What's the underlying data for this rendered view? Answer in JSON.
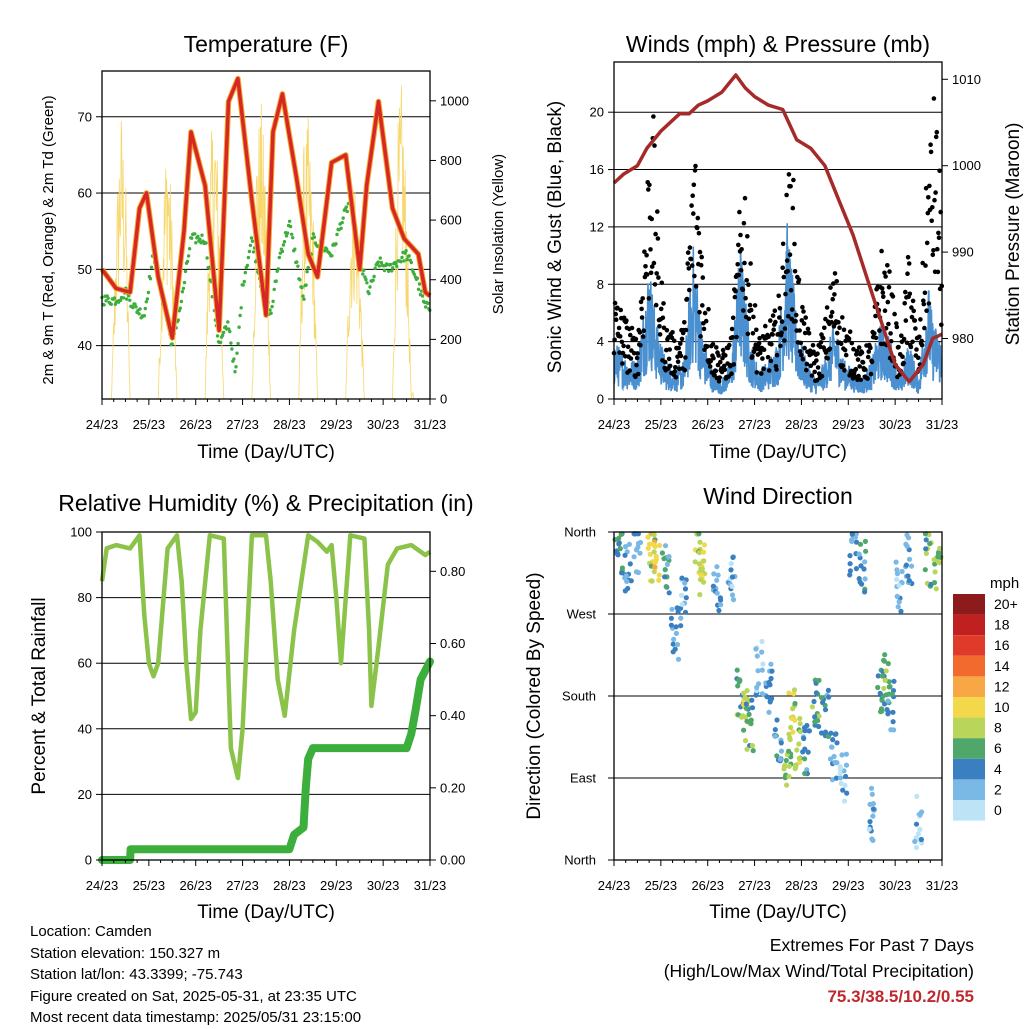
{
  "x_ticks": [
    "24/23",
    "25/23",
    "26/23",
    "27/23",
    "28/23",
    "29/23",
    "30/23",
    "31/23"
  ],
  "colors": {
    "temp": "#d62728",
    "temp_glow": "#f5a623",
    "dewpoint": "#3cae3c",
    "solar": "#f7d76a",
    "wind": "#4a90d0",
    "gust": "#000000",
    "pressure": "#a52a2a",
    "rh": "#8bc34a",
    "rain": "#3cae3c"
  },
  "panels": {
    "temperature": {
      "title": "Temperature (F)",
      "xlabel": "Time (Day/UTC)",
      "ylabel_left": "2m & 9m T (Red, Orange) & 2m Td (Green)",
      "ylabel_right": "Solar Insolation (Yellow)",
      "yticks_left": [
        "40",
        "50",
        "60",
        "70"
      ],
      "yticks_right": [
        "0",
        "200",
        "400",
        "600",
        "800",
        "1000"
      ]
    },
    "winds": {
      "title": "Winds (mph) & Pressure (mb)",
      "xlabel": "Time (Day/UTC)",
      "ylabel_left": "Sonic Wind & Gust (Blue, Black)",
      "ylabel_right": "Station Pressure (Maroon)",
      "yticks_left": [
        "0",
        "4",
        "8",
        "12",
        "16",
        "20"
      ],
      "yticks_right": [
        "980",
        "990",
        "1000",
        "1010"
      ]
    },
    "humidity": {
      "title": "Relative Humidity (%) & Precipitation (in)",
      "xlabel": "Time (Day/UTC)",
      "ylabel_left": "Percent & Total Rainfall",
      "yticks_left": [
        "0",
        "20",
        "40",
        "60",
        "80",
        "100"
      ],
      "yticks_right": [
        "0.00",
        "0.20",
        "0.40",
        "0.60",
        "0.80"
      ]
    },
    "direction": {
      "title": "Wind Direction",
      "xlabel": "Time (Day/UTC)",
      "ylabel_left": "Direction (Colored By Speed)",
      "yticks_left": [
        "North",
        "East",
        "South",
        "West",
        "North"
      ],
      "legend_title": "mph",
      "legend_labels": [
        "20+",
        "18",
        "16",
        "14",
        "12",
        "10",
        "8",
        "6",
        "4",
        "2",
        "0"
      ],
      "legend_colors": [
        "#8e1b1b",
        "#c0201f",
        "#e03a2a",
        "#f26a2e",
        "#f7a743",
        "#f2d84a",
        "#b9d65a",
        "#4fa86a",
        "#3a80c0",
        "#7ab8e6",
        "#bde3f7"
      ]
    }
  },
  "chart_data": [
    {
      "type": "line",
      "title": "Temperature (F)",
      "xlabel": "Time (Day/UTC)",
      "ylabel": "2m & 9m T (Red, Orange) & 2m Td (Green)",
      "y2label": "Solar Insolation (Yellow)",
      "xlim": [
        24,
        31
      ],
      "ylim": [
        33,
        76
      ],
      "y2lim": [
        0,
        1100
      ],
      "series": [
        {
          "name": "2m & 9m T (Red, Orange)",
          "x": [
            24.0,
            24.3,
            24.6,
            24.8,
            24.95,
            25.2,
            25.5,
            25.75,
            25.9,
            26.2,
            26.5,
            26.7,
            26.9,
            27.2,
            27.5,
            27.65,
            27.85,
            28.15,
            28.4,
            28.6,
            28.9,
            29.2,
            29.5,
            29.65,
            29.9,
            30.2,
            30.45,
            30.6,
            30.75,
            30.9,
            31.0
          ],
          "values": [
            50,
            47.5,
            47,
            58,
            60,
            49,
            41,
            55,
            68,
            61,
            42,
            72,
            75,
            59,
            44,
            68,
            73,
            62,
            52,
            49,
            64,
            65,
            50,
            61,
            72,
            58,
            54,
            53,
            52,
            47,
            46.5
          ]
        },
        {
          "name": "2m Td (Green)",
          "x": [
            24.0,
            24.3,
            24.5,
            24.7,
            24.9,
            25.1,
            25.3,
            25.5,
            25.7,
            25.9,
            26.2,
            26.5,
            26.7,
            26.85,
            27.0,
            27.2,
            27.4,
            27.6,
            27.8,
            28.0,
            28.3,
            28.5,
            28.7,
            28.9,
            29.1,
            29.3,
            29.5,
            29.7,
            29.9,
            30.1,
            30.3,
            30.5,
            30.7,
            30.9,
            31.0
          ],
          "values": [
            46,
            46,
            47,
            45,
            44,
            52,
            46,
            40,
            46,
            54,
            54,
            40,
            43,
            36,
            48,
            54,
            48,
            44,
            52,
            56,
            46,
            54,
            53,
            52,
            56,
            59,
            51,
            47,
            51,
            50,
            51,
            52,
            49,
            45,
            45
          ]
        },
        {
          "name": "Solar Insolation (Yellow)",
          "x": [
            24.2,
            24.3,
            24.4,
            24.5,
            24.6,
            25.2,
            25.3,
            25.4,
            25.5,
            25.6,
            26.2,
            26.3,
            26.4,
            26.5,
            26.6,
            27.2,
            27.3,
            27.4,
            27.5,
            27.6,
            28.2,
            28.3,
            28.4,
            28.5,
            28.6,
            29.2,
            29.3,
            29.4,
            29.5,
            29.6,
            30.2,
            30.3,
            30.4,
            30.5,
            30.6,
            30.9
          ],
          "values": [
            0,
            600,
            1000,
            800,
            0,
            0,
            700,
            950,
            600,
            0,
            0,
            800,
            1050,
            700,
            0,
            0,
            900,
            1000,
            750,
            0,
            0,
            850,
            950,
            700,
            0,
            0,
            650,
            800,
            500,
            0,
            0,
            900,
            1080,
            700,
            0,
            300
          ]
        }
      ]
    },
    {
      "type": "line",
      "title": "Winds (mph) & Pressure (mb)",
      "xlabel": "Time (Day/UTC)",
      "ylabel": "Sonic Wind & Gust (Blue, Black)",
      "y2label": "Station Pressure (Maroon)",
      "xlim": [
        24,
        31
      ],
      "ylim": [
        0,
        23.5
      ],
      "y2lim": [
        973,
        1012
      ],
      "series": [
        {
          "name": "Sonic Wind (Blue)",
          "x": [
            24.0,
            24.3,
            24.5,
            24.75,
            24.9,
            25.1,
            25.3,
            25.5,
            25.7,
            25.9,
            26.1,
            26.3,
            26.5,
            26.7,
            26.9,
            27.1,
            27.3,
            27.5,
            27.7,
            27.9,
            28.1,
            28.3,
            28.5,
            28.7,
            28.9,
            29.1,
            29.3,
            29.5,
            29.7,
            29.9,
            30.1,
            30.3,
            30.5,
            30.7,
            30.8,
            31.0
          ],
          "values": [
            3,
            2,
            2,
            7,
            4,
            2,
            1.5,
            2,
            8,
            3,
            1.5,
            1,
            2,
            8,
            3,
            1.5,
            2,
            3,
            9,
            4,
            2,
            1,
            2,
            4,
            2,
            1.5,
            1,
            2,
            4,
            3,
            1,
            3,
            1,
            6,
            4,
            3
          ]
        },
        {
          "name": "Gust (Black)",
          "x": [
            24.0,
            24.3,
            24.5,
            24.7,
            24.8,
            24.95,
            25.1,
            25.3,
            25.5,
            25.7,
            25.8,
            25.9,
            26.1,
            26.3,
            26.5,
            26.7,
            26.8,
            26.9,
            27.1,
            27.3,
            27.5,
            27.7,
            27.8,
            27.9,
            28.1,
            28.3,
            28.5,
            28.7,
            28.9,
            29.1,
            29.3,
            29.5,
            29.7,
            29.9,
            30.1,
            30.3,
            30.5,
            30.7,
            30.85,
            31.0
          ],
          "values": [
            7,
            5,
            4,
            14,
            21,
            10,
            5,
            4,
            5,
            17,
            15,
            9,
            4,
            3,
            4,
            13,
            15,
            9,
            4,
            5,
            6,
            14,
            16,
            9,
            5,
            3,
            5,
            9,
            5,
            4,
            3,
            4,
            10,
            8,
            3,
            10,
            3,
            16,
            20,
            12
          ]
        },
        {
          "name": "Station Pressure (Maroon)",
          "x": [
            24.0,
            24.2,
            24.5,
            24.7,
            25.0,
            25.2,
            25.4,
            25.6,
            25.8,
            26.0,
            26.3,
            26.6,
            26.8,
            27.0,
            27.3,
            27.6,
            27.9,
            28.2,
            28.5,
            28.8,
            29.1,
            29.4,
            29.7,
            30.0,
            30.3,
            30.6,
            30.8,
            31.0
          ],
          "values": [
            998,
            999,
            1000,
            1002,
            1004,
            1005,
            1006,
            1006,
            1007,
            1007.5,
            1008.5,
            1010.5,
            1009,
            1008,
            1007,
            1006.5,
            1003,
            1002,
            1000,
            996,
            992,
            987,
            982,
            977,
            975,
            977,
            980,
            980.5
          ]
        }
      ]
    },
    {
      "type": "line",
      "title": "Relative Humidity (%) & Precipitation (in)",
      "xlabel": "Time (Day/UTC)",
      "ylabel": "Percent & Total Rainfall",
      "xlim": [
        24,
        31
      ],
      "ylim": [
        0,
        100
      ],
      "y2lim": [
        0,
        0.909
      ],
      "series": [
        {
          "name": "Relative Humidity (%)",
          "x": [
            24.0,
            24.1,
            24.3,
            24.6,
            24.8,
            24.9,
            25.0,
            25.1,
            25.2,
            25.4,
            25.6,
            25.7,
            25.8,
            25.9,
            26.0,
            26.1,
            26.3,
            26.6,
            26.7,
            26.75,
            26.9,
            27.0,
            27.2,
            27.5,
            27.6,
            27.75,
            27.9,
            28.1,
            28.4,
            28.6,
            28.8,
            28.9,
            29.0,
            29.1,
            29.3,
            29.6,
            29.7,
            29.75,
            29.9,
            30.1,
            30.3,
            30.6,
            30.9,
            31.0
          ],
          "values": [
            85,
            95,
            96,
            95,
            99,
            75,
            60,
            56,
            60,
            95,
            99,
            85,
            60,
            43,
            45,
            70,
            99,
            98,
            55,
            34,
            25,
            40,
            99,
            99,
            85,
            55,
            44,
            70,
            99,
            97,
            94,
            96,
            80,
            60,
            99,
            98,
            70,
            47,
            65,
            90,
            95,
            96,
            93,
            94
          ]
        },
        {
          "name": "Total Rainfall (in)",
          "x": [
            24.0,
            24.6,
            24.61,
            28.0,
            28.1,
            28.3,
            28.35,
            28.4,
            28.5,
            29.0,
            29.5,
            30.0,
            30.5,
            30.6,
            30.7,
            30.8,
            31.0
          ],
          "values": [
            0.0,
            0.0,
            0.03,
            0.03,
            0.07,
            0.09,
            0.2,
            0.28,
            0.31,
            0.31,
            0.31,
            0.31,
            0.31,
            0.35,
            0.42,
            0.5,
            0.55
          ]
        }
      ]
    },
    {
      "type": "scatter",
      "title": "Wind Direction",
      "xlabel": "Time (Day/UTC)",
      "ylabel": "Direction (Colored By Speed)",
      "xlim": [
        24,
        31
      ],
      "ylim": [
        0,
        360
      ],
      "note": "Point color encodes speed (mph) per legend",
      "series": [
        {
          "name": "Direction",
          "x": [
            24.1,
            24.3,
            24.5,
            24.8,
            24.9,
            25.1,
            25.3,
            25.5,
            25.8,
            25.9,
            26.2,
            26.5,
            26.7,
            26.8,
            26.9,
            27.1,
            27.3,
            27.5,
            27.7,
            27.8,
            27.9,
            28.1,
            28.3,
            28.5,
            28.7,
            28.9,
            29.1,
            29.3,
            29.5,
            29.7,
            29.8,
            29.9,
            30.1,
            30.3,
            30.5,
            30.7,
            30.9
          ],
          "values": [
            330,
            320,
            340,
            330,
            335,
            320,
            250,
            280,
            330,
            320,
            300,
            310,
            180,
            160,
            150,
            210,
            190,
            130,
            110,
            160,
            130,
            120,
            170,
            160,
            110,
            90,
            340,
            320,
            50,
            180,
            200,
            170,
            300,
            330,
            40,
            330,
            320
          ],
          "speeds": [
            4,
            3,
            2,
            8,
            10,
            4,
            3,
            2,
            8,
            9,
            3,
            2,
            6,
            8,
            6,
            2,
            3,
            4,
            7,
            8,
            8,
            4,
            6,
            4,
            3,
            2,
            3,
            4,
            2,
            5,
            7,
            4,
            2,
            3,
            2,
            6,
            7
          ]
        }
      ]
    }
  ],
  "info": {
    "location": "Location: Camden",
    "elevation": "Station elevation: 150.327 m",
    "latlon": "Station lat/lon: 43.3399; -75.743",
    "created": "Figure created on Sat, 2025-05-31, at 23:35 UTC",
    "recent": "Most recent data timestamp: 2025/05/31 23:15:00"
  },
  "extremes": {
    "line1": "Extremes For Past 7 Days",
    "line2": "(High/Low/Max Wind/Total Precipitation)",
    "values": "75.3/38.5/10.2/0.55"
  }
}
